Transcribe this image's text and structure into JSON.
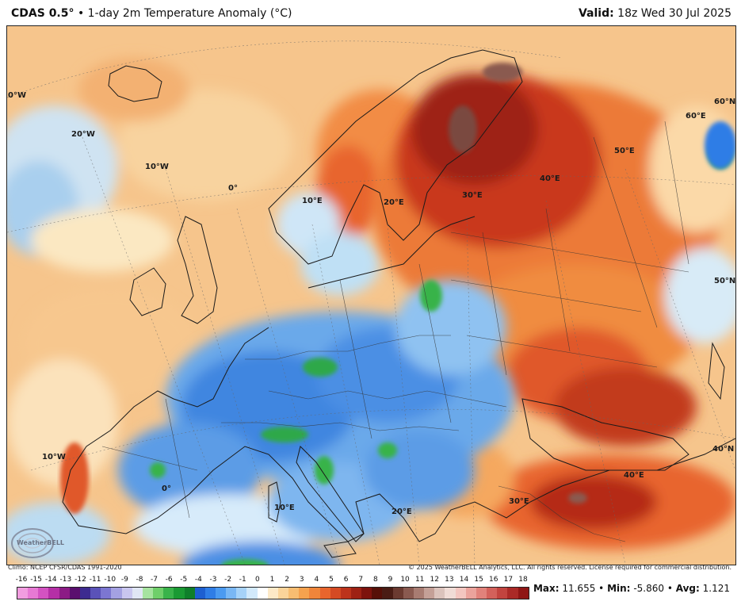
{
  "header": {
    "model": "CDAS 0.5",
    "degree": "°",
    "separator": "•",
    "title": "1-day 2m Temperature Anomaly (°C)",
    "valid_label": "Valid:",
    "valid_value": "18z Wed 30 Jul 2025"
  },
  "map": {
    "region": "Europe",
    "gridline_labels": [
      {
        "text": "0°W",
        "key": "g1"
      },
      {
        "text": "20°W",
        "key": "g2"
      },
      {
        "text": "10°W",
        "key": "g3"
      },
      {
        "text": "0°",
        "key": "g4"
      },
      {
        "text": "10°E",
        "key": "g5"
      },
      {
        "text": "20°E",
        "key": "g6"
      },
      {
        "text": "30°E",
        "key": "g7"
      },
      {
        "text": "40°E",
        "key": "g8"
      },
      {
        "text": "50°E",
        "key": "g9"
      },
      {
        "text": "60°E",
        "key": "g10"
      },
      {
        "text": "60°N",
        "key": "g11"
      },
      {
        "text": "50°N",
        "key": "g12"
      },
      {
        "text": "40°N",
        "key": "g13"
      },
      {
        "text": "10°W",
        "key": "g14"
      },
      {
        "text": "0°",
        "key": "g15"
      },
      {
        "text": "10°E",
        "key": "g16"
      },
      {
        "text": "20°E",
        "key": "g17"
      },
      {
        "text": "30°E",
        "key": "g18"
      },
      {
        "text": "40°E",
        "key": "g19"
      }
    ],
    "logo_text": "WeatherBELL"
  },
  "credits": {
    "climo": "Climo: NCEP CFSR/CDAS 1991-2020",
    "copyright": "© 2025 WeatherBELL Analytics, LLC. All rights reserved. License required for commercial distribution."
  },
  "colorbar": {
    "ticks": [
      "-16",
      "-15",
      "-14",
      "-13",
      "-12",
      "-11",
      "-10",
      "-9",
      "-8",
      "-7",
      "-6",
      "-5",
      "-4",
      "-3",
      "-2",
      "-1",
      "0",
      "1",
      "2",
      "3",
      "4",
      "5",
      "6",
      "7",
      "8",
      "9",
      "10",
      "11",
      "12",
      "13",
      "14",
      "15",
      "16",
      "17",
      "18"
    ],
    "colors": [
      "#f29de0",
      "#e779d4",
      "#d452c2",
      "#b52fa6",
      "#8c1b85",
      "#5a0f6e",
      "#3d2b90",
      "#5a52b8",
      "#7c76d1",
      "#a4a1e2",
      "#c9c6ef",
      "#e0e6f4",
      "#a6e3a0",
      "#6fcf6a",
      "#39b34a",
      "#1a9a33",
      "#0f7f2a",
      "#1d5fd1",
      "#2f7de6",
      "#4b9af0",
      "#79b7f4",
      "#a6d2f8",
      "#d2e9fb",
      "#ffffff",
      "#fde9c7",
      "#fbd49a",
      "#f8bd71",
      "#f5a24e",
      "#f0853a",
      "#e8652d",
      "#d44a23",
      "#bc331b",
      "#9e2114",
      "#7d130d",
      "#561008",
      "#4a1c14",
      "#6b3a30",
      "#8a5a50",
      "#a87c72",
      "#c4a097",
      "#dbc3bc",
      "#f0dcd6",
      "#f3c6c0",
      "#eba39c",
      "#e1827b",
      "#d3615b",
      "#c2443f",
      "#ab2a27",
      "#8f1615"
    ]
  },
  "stats": {
    "max_label": "Max:",
    "max_value": "11.655",
    "min_label": "Min:",
    "min_value": "-5.860",
    "avg_label": "Avg:",
    "avg_value": "1.121",
    "sep": "•"
  }
}
